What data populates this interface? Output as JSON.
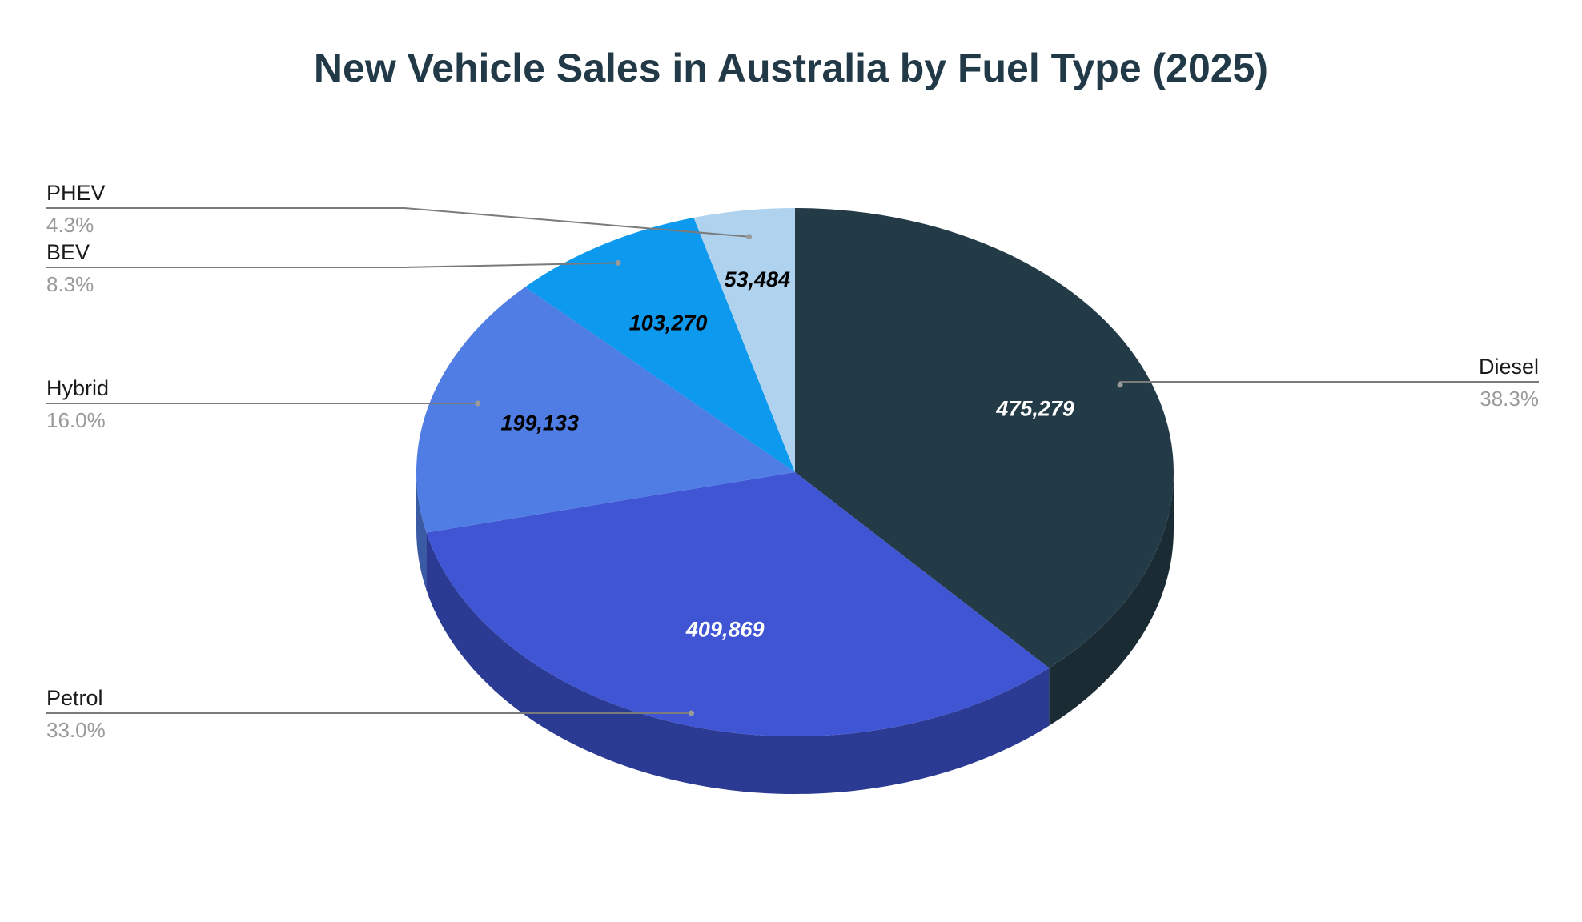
{
  "chart_data": {
    "type": "pie",
    "title": "New Vehicle Sales in Australia by Fuel Type (2025)",
    "three_d": true,
    "slices": [
      {
        "name": "Diesel",
        "value": 475279,
        "value_label": "475,279",
        "percent_label": "38.3%",
        "color": "#233a47",
        "side_color": "#1a2b34",
        "label_color": "#ffffff"
      },
      {
        "name": "Petrol",
        "value": 409869,
        "value_label": "409,869",
        "percent_label": "33.0%",
        "color": "#3f55d3",
        "side_color": "#2b3a93",
        "label_color": "#ffffff"
      },
      {
        "name": "Hybrid",
        "value": 199133,
        "value_label": "199,133",
        "percent_label": "16.0%",
        "color": "#507de3",
        "side_color": "#3a5aa4",
        "label_color": "#000000"
      },
      {
        "name": "BEV",
        "value": 103270,
        "value_label": "103,270",
        "percent_label": "8.3%",
        "color": "#0d99ee",
        "side_color": "#0a6fad",
        "label_color": "#000000"
      },
      {
        "name": "PHEV",
        "value": 53484,
        "value_label": "53,484",
        "percent_label": "4.3%",
        "color": "#afd3ef",
        "side_color": "#7f9bb0",
        "label_color": "#000000"
      }
    ],
    "legend_placement": "callouts"
  }
}
